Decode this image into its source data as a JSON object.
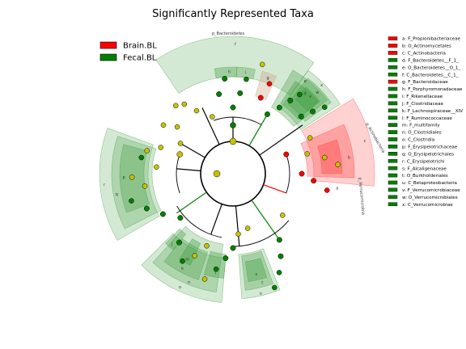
{
  "chart_data": {
    "type": "cladogram",
    "title": "Significantly Represented Taxa",
    "groups": [
      {
        "name": "Brain.BL",
        "color": "#ff0000"
      },
      {
        "name": "Fecal.BL",
        "color": "#008000"
      }
    ],
    "taxa": [
      {
        "key": "a",
        "label": "a: F_Propionibacteriaceae",
        "group": "Brain.BL"
      },
      {
        "key": "b",
        "label": "b: O_Actinomycetales",
        "group": "Brain.BL"
      },
      {
        "key": "c",
        "label": "c: C_Actinobacteria",
        "group": "Brain.BL"
      },
      {
        "key": "d",
        "label": "d: F_Bacteroidetes__F_1_",
        "group": "Fecal.BL"
      },
      {
        "key": "e",
        "label": "e: O_Bacteroidetes__O_1_",
        "group": "Fecal.BL"
      },
      {
        "key": "f",
        "label": "f: C_Bacteroidetes__C_1_",
        "group": "Fecal.BL"
      },
      {
        "key": "g",
        "label": "g: F_Bacteroidaceae",
        "group": "Brain.BL"
      },
      {
        "key": "h",
        "label": "h: F_Porphyromonadaceae",
        "group": "Fecal.BL"
      },
      {
        "key": "i",
        "label": "i: F_Rikenellaceae",
        "group": "Fecal.BL"
      },
      {
        "key": "j",
        "label": "j: F_Clostridiaceae",
        "group": "Fecal.BL"
      },
      {
        "key": "k",
        "label": "k: F_Lachnospiraceae__XIV",
        "group": "Fecal.BL"
      },
      {
        "key": "l",
        "label": "l: F_Ruminococcaceae",
        "group": "Fecal.BL"
      },
      {
        "key": "m",
        "label": "m: F_multifamily",
        "group": "Fecal.BL"
      },
      {
        "key": "n",
        "label": "n: O_Clostridiales",
        "group": "Fecal.BL"
      },
      {
        "key": "o",
        "label": "o: C_Clostridia",
        "group": "Fecal.BL"
      },
      {
        "key": "p",
        "label": "p: F_Erysipelotrichaceae",
        "group": "Fecal.BL"
      },
      {
        "key": "q",
        "label": "q: O_Erysipelotrichales",
        "group": "Fecal.BL"
      },
      {
        "key": "r",
        "label": "r: C_Erysipelotrichi",
        "group": "Fecal.BL"
      },
      {
        "key": "s",
        "label": "s: F_Alcaligenaceae",
        "group": "Fecal.BL"
      },
      {
        "key": "t",
        "label": "t: O_Burkholderiales",
        "group": "Fecal.BL"
      },
      {
        "key": "u",
        "label": "u: C_Betaproteobacteria",
        "group": "Fecal.BL"
      },
      {
        "key": "v",
        "label": "v: F_Verrucomicrobiaceae",
        "group": "Fecal.BL"
      },
      {
        "key": "w",
        "label": "w: O_Verrucomicrobiales",
        "group": "Fecal.BL"
      },
      {
        "key": "x",
        "label": "x: C_Verrucomicrobiae",
        "group": "Fecal.BL"
      }
    ],
    "phyla": [
      {
        "label": "p_Bacteroidetes",
        "group": "Fecal.BL"
      },
      {
        "label": "p_Actinobacteria",
        "group": "Brain.BL"
      },
      {
        "label": "p_Verrucomicrobia",
        "group": "Fecal.BL"
      }
    ]
  }
}
